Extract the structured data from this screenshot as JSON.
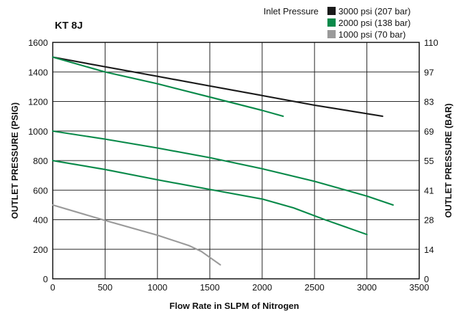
{
  "chart_data": {
    "type": "line",
    "title": "KT 8J",
    "xlabel": "Flow Rate in SLPM of Nitrogen",
    "ylabel": "OUTLET PRESSURE (PSIG)",
    "ylabel_right": "OUTLET PRESSURE (BAR)",
    "xlim": [
      0,
      3500
    ],
    "ylim": [
      0,
      1600
    ],
    "x_ticks": [
      "0",
      "500",
      "1000",
      "1500",
      "2000",
      "2500",
      "3000",
      "3500"
    ],
    "y_ticks": [
      "0",
      "200",
      "400",
      "600",
      "800",
      "1000",
      "1200",
      "1400",
      "1600"
    ],
    "y_right_ticks": [
      "0",
      "14",
      "28",
      "41",
      "55",
      "69",
      "83",
      "97",
      "110"
    ],
    "grid": true,
    "legend": {
      "title": "Inlet Pressure",
      "placement": "top-right",
      "entries": [
        {
          "label": "3000 psi (207 bar)",
          "color": "#1a1a1a"
        },
        {
          "label": "2000 psi (138 bar)",
          "color": "#0a8a4a"
        },
        {
          "label": "1000 psi (70 bar)",
          "color": "#9a9a9a"
        }
      ]
    },
    "series": [
      {
        "group": 0,
        "color": "#1a1a1a",
        "points": [
          [
            0,
            1500
          ],
          [
            500,
            1435
          ],
          [
            1000,
            1370
          ],
          [
            1500,
            1305
          ],
          [
            2000,
            1240
          ],
          [
            2500,
            1175
          ],
          [
            3150,
            1100
          ]
        ]
      },
      {
        "group": 1,
        "color": "#0a8a4a",
        "points": [
          [
            0,
            1500
          ],
          [
            500,
            1400
          ],
          [
            1000,
            1320
          ],
          [
            1500,
            1230
          ],
          [
            2000,
            1140
          ],
          [
            2200,
            1100
          ]
        ]
      },
      {
        "group": 1,
        "color": "#0a8a4a",
        "points": [
          [
            0,
            1000
          ],
          [
            500,
            945
          ],
          [
            1000,
            885
          ],
          [
            1500,
            820
          ],
          [
            2000,
            745
          ],
          [
            2500,
            660
          ],
          [
            3000,
            560
          ],
          [
            3250,
            500
          ]
        ]
      },
      {
        "group": 1,
        "color": "#0a8a4a",
        "points": [
          [
            0,
            800
          ],
          [
            500,
            740
          ],
          [
            1000,
            670
          ],
          [
            1500,
            605
          ],
          [
            2000,
            540
          ],
          [
            2300,
            480
          ],
          [
            2600,
            400
          ],
          [
            3000,
            300
          ]
        ]
      },
      {
        "group": 2,
        "color": "#9a9a9a",
        "points": [
          [
            0,
            500
          ],
          [
            500,
            395
          ],
          [
            1000,
            295
          ],
          [
            1300,
            225
          ],
          [
            1420,
            185
          ],
          [
            1600,
            95
          ]
        ]
      }
    ]
  }
}
